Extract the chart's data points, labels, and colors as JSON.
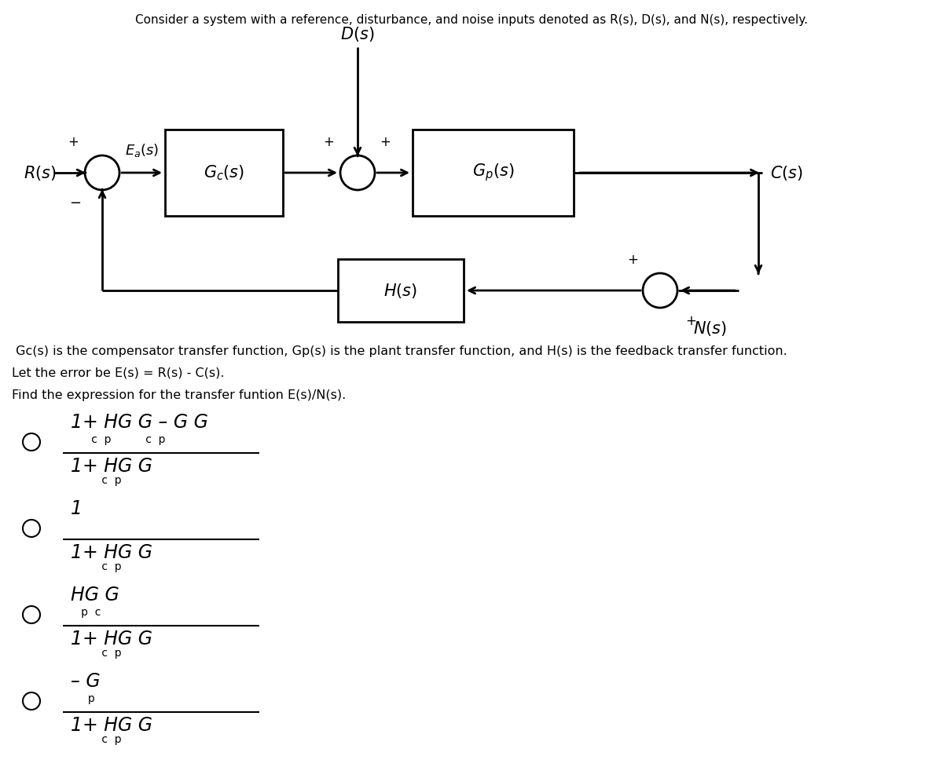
{
  "title_text": "Consider a system with a reference, disturbance, and noise inputs denoted as R(s), D(s), and N(s), respectively.",
  "bg_color": "#ffffff",
  "text_color": "#000000",
  "block_edge_color": "#000000",
  "line_width": 2.0,
  "description_lines": [
    " Gc(s) is the compensator transfer function, Gp(s) is the plant transfer function, and H(s) is the feedback transfer function.",
    "Let the error be E(s) = R(s) - C(s).",
    "Find the expression for the transfer funtion E(s)/N(s)."
  ],
  "options": [
    {
      "numerator_main": "1+ HG G",
      "numerator_rest": " – G G",
      "numerator_sub": "      c  p          c  p",
      "denominator": "1+ HG G",
      "denominator_sub": "         c  p"
    },
    {
      "numerator_main": "1",
      "numerator_rest": "",
      "numerator_sub": "",
      "denominator": "1+ HG G",
      "denominator_sub": "         c  p"
    },
    {
      "numerator_main": "HG G",
      "numerator_rest": "",
      "numerator_sub": "   p  c",
      "denominator": "1+ HG G",
      "denominator_sub": "         c  p"
    },
    {
      "numerator_main": "– G",
      "numerator_rest": "",
      "numerator_sub": "     p",
      "denominator": "1+ HG G",
      "denominator_sub": "         c  p"
    }
  ]
}
